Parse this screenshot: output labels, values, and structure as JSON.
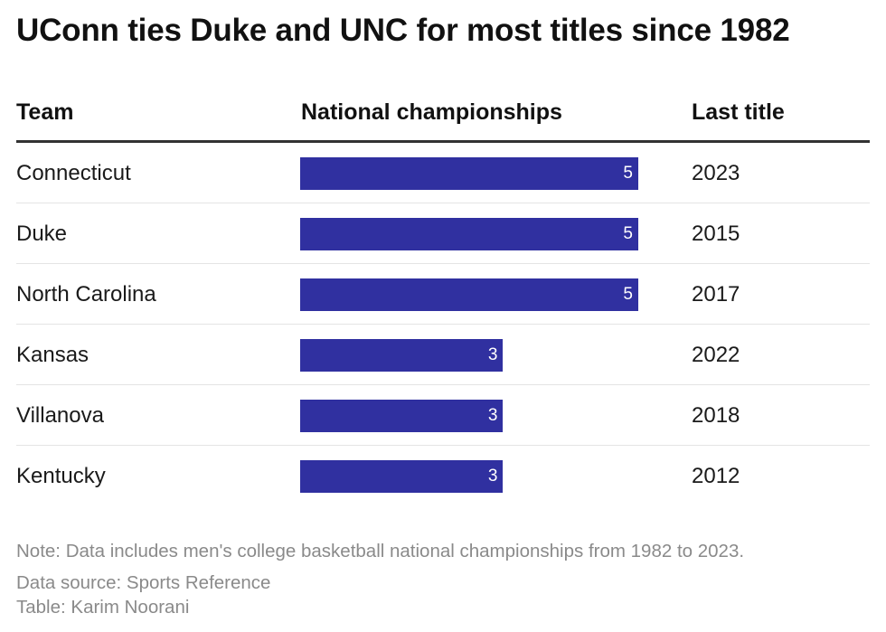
{
  "title": "UConn ties Duke and UNC for most titles since 1982",
  "headers": {
    "team": "Team",
    "championships": "National championships",
    "last_title": "Last title"
  },
  "colors": {
    "bar": "#3030a0"
  },
  "chart_data": {
    "type": "bar",
    "title": "UConn ties Duke and UNC for most titles since 1982",
    "orientation": "horizontal",
    "categories": [
      "Connecticut",
      "Duke",
      "North Carolina",
      "Kansas",
      "Villanova",
      "Kentucky"
    ],
    "values": [
      5,
      5,
      5,
      3,
      3,
      3
    ],
    "last_title": [
      "2023",
      "2015",
      "2017",
      "2022",
      "2018",
      "2012"
    ],
    "xlim": [
      0,
      5
    ],
    "rows": [
      {
        "team": "Connecticut",
        "championships": 5,
        "last_title": "2023"
      },
      {
        "team": "Duke",
        "championships": 5,
        "last_title": "2015"
      },
      {
        "team": "North Carolina",
        "championships": 5,
        "last_title": "2017"
      },
      {
        "team": "Kansas",
        "championships": 3,
        "last_title": "2022"
      },
      {
        "team": "Villanova",
        "championships": 3,
        "last_title": "2018"
      },
      {
        "team": "Kentucky",
        "championships": 3,
        "last_title": "2012"
      }
    ]
  },
  "footer": {
    "note": "Note: Data includes men's college basketball national championships from 1982 to 2023.",
    "source": "Data source: Sports Reference",
    "credit": "Table: Karim Noorani"
  }
}
